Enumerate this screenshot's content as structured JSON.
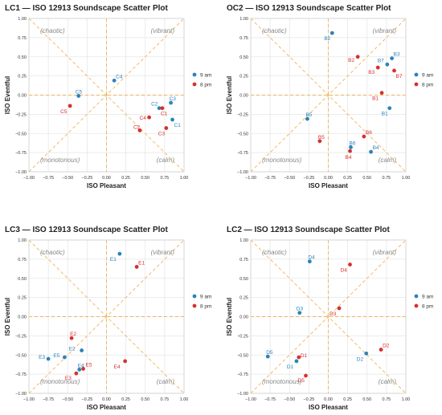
{
  "colors": {
    "am": "#2b83ba",
    "pm": "#d7302f",
    "guide": "#f0b35a",
    "grid": "#e6e6e6"
  },
  "chart_data": [
    {
      "type": "scatter",
      "title": "LC1 — ISO 12913 Soundscape Scatter Plot",
      "xlabel": "ISO Pleasant",
      "ylabel": "ISO Eventful",
      "xlim": [
        -1,
        1
      ],
      "ylim": [
        -1,
        1
      ],
      "xticks": [
        "−1.00",
        "−0.75",
        "−0.50",
        "−0.25",
        "0.00",
        "0.25",
        "0.50",
        "0.75",
        "1.00"
      ],
      "yticks": [
        "1.00",
        "0.75",
        "0.50",
        "0.25",
        "0.00",
        "−0.25",
        "−0.50",
        "−0.75",
        "−1.00"
      ],
      "quadrants": {
        "tl": "(chaotic)",
        "tr": "(vibrant)",
        "bl": "(monotonous)",
        "br": "(calm)"
      },
      "legend": [
        "9 am",
        "8 pm"
      ],
      "series": [
        {
          "name": "9 am",
          "points": [
            {
              "label": "C1",
              "x": 0.85,
              "y": -0.32
            },
            {
              "label": "C2",
              "x": 0.68,
              "y": -0.17
            },
            {
              "label": "C3",
              "x": 0.83,
              "y": -0.1
            },
            {
              "label": "C4",
              "x": 0.1,
              "y": 0.19
            },
            {
              "label": "C5",
              "x": -0.36,
              "y": -0.01
            }
          ]
        },
        {
          "name": "8 pm",
          "points": [
            {
              "label": "C1",
              "x": 0.72,
              "y": -0.17
            },
            {
              "label": "C2",
              "x": 0.43,
              "y": -0.46
            },
            {
              "label": "C3",
              "x": 0.77,
              "y": -0.43
            },
            {
              "label": "C4",
              "x": 0.55,
              "y": -0.29
            },
            {
              "label": "C5",
              "x": -0.47,
              "y": -0.14
            }
          ]
        }
      ]
    },
    {
      "type": "scatter",
      "title": "OC2 — ISO 12913 Soundscape Scatter Plot",
      "xlabel": "ISO Pleasant",
      "ylabel": "ISO Eventful",
      "xlim": [
        -1,
        1
      ],
      "ylim": [
        -1,
        1
      ],
      "xticks": [
        "−1.00",
        "−0.75",
        "−0.50",
        "−0.25",
        "0.00",
        "0.25",
        "0.50",
        "0.75",
        "1.00"
      ],
      "yticks": [
        "1.00",
        "0.75",
        "0.50",
        "0.25",
        "0.00",
        "−0.25",
        "−0.50",
        "−0.75",
        "−1.00"
      ],
      "quadrants": {
        "tl": "(chaotic)",
        "tr": "(vibrant)",
        "bl": "(monotonous)",
        "br": "(calm)"
      },
      "legend": [
        "9 am",
        "8 pm"
      ],
      "series": [
        {
          "name": "9 am",
          "points": [
            {
              "label": "B1",
              "x": 0.79,
              "y": -0.17
            },
            {
              "label": "B2",
              "x": 0.05,
              "y": 0.81
            },
            {
              "label": "B3",
              "x": 0.82,
              "y": 0.48
            },
            {
              "label": "B4",
              "x": 0.55,
              "y": -0.74
            },
            {
              "label": "B5",
              "x": -0.27,
              "y": -0.31
            },
            {
              "label": "B6",
              "x": 0.29,
              "y": -0.68
            },
            {
              "label": "B7",
              "x": 0.76,
              "y": 0.4
            }
          ]
        },
        {
          "name": "8 pm",
          "points": [
            {
              "label": "B1",
              "x": 0.69,
              "y": 0.03
            },
            {
              "label": "B2",
              "x": 0.38,
              "y": 0.5
            },
            {
              "label": "B3",
              "x": 0.64,
              "y": 0.36
            },
            {
              "label": "B4",
              "x": 0.28,
              "y": -0.73
            },
            {
              "label": "B5",
              "x": -0.11,
              "y": -0.6
            },
            {
              "label": "B6",
              "x": 0.46,
              "y": -0.54
            },
            {
              "label": "B7",
              "x": 0.85,
              "y": 0.32
            }
          ]
        }
      ]
    },
    {
      "type": "scatter",
      "title": "LC3 — ISO 12913 Soundscape Scatter Plot",
      "xlabel": "ISO Pleasant",
      "ylabel": "ISO Eventful",
      "xlim": [
        -1,
        1
      ],
      "ylim": [
        -1,
        1
      ],
      "xticks": [
        "−1.00",
        "−0.75",
        "−0.50",
        "−0.25",
        "0.00",
        "0.25",
        "0.50",
        "0.75",
        "1.00"
      ],
      "yticks": [
        "1.00",
        "0.75",
        "0.50",
        "0.25",
        "0.00",
        "−0.25",
        "−0.50",
        "−0.75",
        "−1.00"
      ],
      "quadrants": {
        "tl": "(chaotic)",
        "tr": "(vibrant)",
        "bl": "(monotonous)",
        "br": "(calm)"
      },
      "legend": [
        "9 am",
        "8 pm"
      ],
      "series": [
        {
          "name": "9 am",
          "points": [
            {
              "label": "E1",
              "x": 0.17,
              "y": 0.82
            },
            {
              "label": "E2",
              "x": -0.32,
              "y": -0.44
            },
            {
              "label": "E3",
              "x": -0.75,
              "y": -0.55
            },
            {
              "label": "E4",
              "x": -0.35,
              "y": -0.69
            },
            {
              "label": "E5",
              "x": -0.54,
              "y": -0.53
            }
          ]
        },
        {
          "name": "8 pm",
          "points": [
            {
              "label": "E1",
              "x": 0.39,
              "y": 0.65
            },
            {
              "label": "E2",
              "x": -0.45,
              "y": -0.28
            },
            {
              "label": "E3",
              "x": -0.39,
              "y": -0.74
            },
            {
              "label": "E4",
              "x": 0.24,
              "y": -0.58
            },
            {
              "label": "E5",
              "x": -0.3,
              "y": -0.68
            }
          ]
        }
      ]
    },
    {
      "type": "scatter",
      "title": "LC2 — ISO 12913 Soundscape Scatter Plot",
      "xlabel": "ISO Pleasant",
      "ylabel": "ISO Eventful",
      "xlim": [
        -1,
        1
      ],
      "ylim": [
        -1,
        1
      ],
      "xticks": [
        "−1.00",
        "−0.75",
        "−0.50",
        "−0.25",
        "0.00",
        "0.25",
        "0.50",
        "0.75",
        "1.00"
      ],
      "yticks": [
        "1.00",
        "0.75",
        "0.50",
        "0.25",
        "0.00",
        "−0.25",
        "−0.50",
        "−0.75",
        "−1.00"
      ],
      "quadrants": {
        "tl": "(chaotic)",
        "tr": "(vibrant)",
        "bl": "(monotonous)",
        "br": "(calm)"
      },
      "legend": [
        "9 am",
        "8 pm"
      ],
      "series": [
        {
          "name": "9 am",
          "points": [
            {
              "label": "D1",
              "x": -0.41,
              "y": -0.58
            },
            {
              "label": "D2",
              "x": 0.49,
              "y": -0.48
            },
            {
              "label": "D3",
              "x": -0.37,
              "y": 0.05
            },
            {
              "label": "D4",
              "x": -0.24,
              "y": 0.72
            },
            {
              "label": "D5",
              "x": -0.78,
              "y": -0.52
            }
          ]
        },
        {
          "name": "8 pm",
          "points": [
            {
              "label": "D1",
              "x": -0.38,
              "y": -0.53
            },
            {
              "label": "D2",
              "x": 0.68,
              "y": -0.43
            },
            {
              "label": "D3",
              "x": 0.14,
              "y": 0.11
            },
            {
              "label": "D4",
              "x": 0.28,
              "y": 0.68
            },
            {
              "label": "D5",
              "x": -0.29,
              "y": -0.77
            }
          ]
        }
      ]
    }
  ]
}
